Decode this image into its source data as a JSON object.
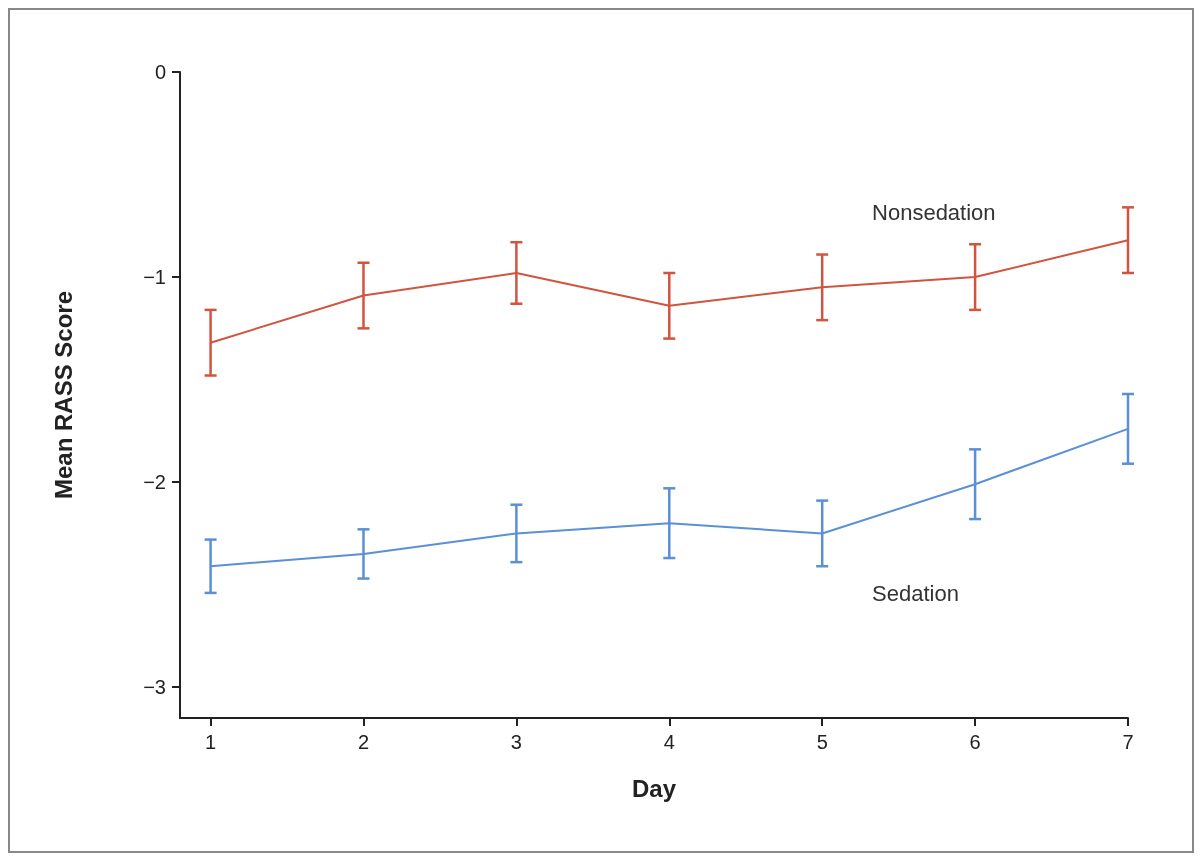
{
  "chart_data": {
    "type": "line",
    "xlabel": "Day",
    "ylabel": "Mean RASS Score",
    "x": [
      1,
      2,
      3,
      4,
      5,
      6,
      7
    ],
    "xlim": [
      0.8,
      7
    ],
    "xticks": [
      1,
      2,
      3,
      4,
      5,
      6,
      7
    ],
    "ylim": [
      -3.15,
      0
    ],
    "yticks": [
      0,
      -1,
      -2,
      -3
    ],
    "grid": false,
    "marker": "none",
    "line_style": "solid",
    "series": [
      {
        "name": "Nonsedation",
        "color": "#d0543f",
        "values": [
          -1.32,
          -1.09,
          -0.98,
          -1.14,
          -1.05,
          -1.0,
          -0.82
        ],
        "errors": [
          0.16,
          0.16,
          0.15,
          0.16,
          0.16,
          0.16,
          0.16
        ]
      },
      {
        "name": "Sedation",
        "color": "#5b8fd6",
        "values": [
          -2.41,
          -2.35,
          -2.25,
          -2.2,
          -2.25,
          -2.01,
          -1.74
        ],
        "errors": [
          0.13,
          0.12,
          0.14,
          0.17,
          0.16,
          0.17,
          0.17
        ]
      }
    ]
  }
}
